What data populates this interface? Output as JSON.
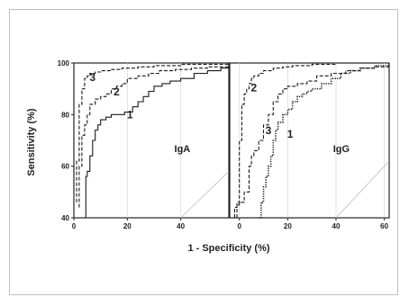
{
  "chart_data": {
    "type": "line",
    "xlabel": "1 - Specificity (%)",
    "ylabel": "Sensitivity (%)",
    "ylim": [
      40,
      100
    ],
    "yticks": [
      40,
      60,
      80,
      100
    ],
    "grid": false,
    "panels": [
      {
        "label": "IgA",
        "xlim": [
          0,
          58
        ],
        "xticks": [
          0,
          20,
          40
        ],
        "diagonal": [
          [
            40,
            40
          ],
          [
            58,
            58
          ]
        ],
        "series": [
          {
            "name": "1",
            "style": "solid",
            "x": [
              4.5,
              4.5,
              5,
              5,
              6,
              6,
              7,
              8,
              9,
              10,
              12,
              14,
              16,
              19,
              20,
              22,
              24,
              26,
              28,
              30,
              33,
              36,
              40,
              45,
              50,
              55,
              58
            ],
            "y": [
              40,
              56,
              56,
              58,
              58,
              64,
              70,
              74,
              76,
              78,
              79,
              80,
              80,
              81,
              81,
              83,
              85,
              87,
              89,
              91,
              92,
              93,
              94,
              96,
              97,
              98,
              99
            ]
          },
          {
            "name": "2",
            "style": "dashed",
            "x": [
              2,
              2,
              3,
              3,
              4,
              5,
              6,
              8,
              10,
              12,
              14,
              16,
              18,
              20,
              24,
              28,
              32,
              38,
              44,
              50,
              58
            ],
            "y": [
              44,
              60,
              62,
              72,
              76,
              80,
              84,
              86,
              87,
              88,
              90,
              91,
              92,
              94,
              95,
              96,
              97,
              97.5,
              98,
              98.5,
              99
            ]
          },
          {
            "name": "3",
            "style": "dashed",
            "x": [
              1,
              1,
              2,
              2,
              3,
              4,
              5,
              6,
              8,
              10,
              14,
              18,
              24,
              30,
              40,
              50,
              58
            ],
            "y": [
              46,
              62,
              76,
              84,
              90,
              94,
              95,
              96,
              96.5,
              97,
              97.5,
              98,
              98.5,
              99,
              99.5,
              99.5,
              100
            ]
          }
        ],
        "curve_labels": [
          {
            "text": "1",
            "x": 21,
            "y": 78.5
          },
          {
            "text": "2",
            "x": 16,
            "y": 87.5
          },
          {
            "text": "3",
            "x": 7,
            "y": 93
          }
        ]
      },
      {
        "label": "IgG",
        "xlim": [
          -4,
          62
        ],
        "xticks": [
          0,
          20,
          40,
          60
        ],
        "diagonal": [
          [
            40,
            40
          ],
          [
            62,
            62
          ]
        ],
        "series": [
          {
            "name": "1",
            "style": "dotted",
            "x": [
              8,
              9,
              10,
              11,
              12,
              13,
              14,
              15,
              16,
              18,
              20,
              22,
              24,
              26,
              28,
              30,
              34,
              38,
              42,
              46,
              50,
              56,
              62
            ],
            "y": [
              40,
              46,
              52,
              56,
              60,
              64,
              70,
              74,
              77,
              80,
              82,
              85,
              87,
              88,
              89,
              90,
              92,
              94,
              96,
              97,
              98,
              99,
              99.5
            ]
          },
          {
            "name": "2",
            "style": "dashed",
            "x": [
              -1,
              -1,
              0,
              0,
              1,
              1,
              2,
              3,
              4,
              5,
              6,
              8,
              10,
              14,
              18,
              22,
              30,
              40,
              50,
              62
            ],
            "y": [
              40,
              46,
              56,
              70,
              78,
              84,
              88,
              90,
              92,
              94,
              95,
              96,
              97,
              98,
              98.5,
              99,
              99.5,
              100,
              100,
              100
            ]
          },
          {
            "name": "3",
            "style": "dashed",
            "x": [
              -2,
              -2,
              -1,
              0,
              2,
              4,
              5,
              6,
              8,
              10,
              12,
              14,
              16,
              18,
              20,
              24,
              28,
              32,
              38,
              44,
              50,
              56,
              62
            ],
            "y": [
              40,
              44,
              45,
              46,
              50,
              60,
              64,
              66,
              70,
              76,
              80,
              85,
              88,
              90,
              91,
              92,
              93,
              95,
              96,
              97,
              98,
              98.5,
              99
            ]
          }
        ],
        "curve_labels": [
          {
            "text": "1",
            "x": 21,
            "y": 71
          },
          {
            "text": "2",
            "x": 6,
            "y": 89
          },
          {
            "text": "3",
            "x": 12,
            "y": 72.5
          }
        ]
      }
    ]
  }
}
